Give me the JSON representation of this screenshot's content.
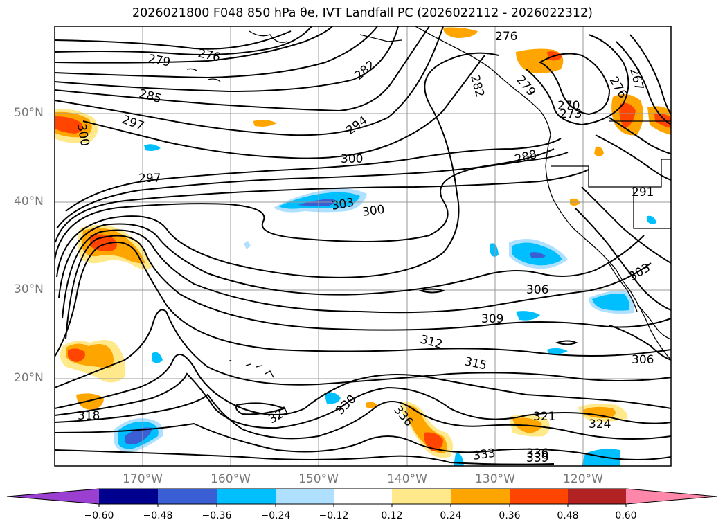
{
  "title": "2026021800 F048 850 hPa θe, IVT Landfall PC (2026022112 - 2026022312)",
  "map": {
    "lat_labels": [
      "50°N",
      "40°N",
      "30°N",
      "20°N"
    ],
    "lon_labels": [
      "170°W",
      "160°W",
      "150°W",
      "140°W",
      "130°W",
      "120°W"
    ],
    "contour_labels": [
      "276",
      "279",
      "285",
      "297",
      "300",
      "297",
      "270",
      "273",
      "276",
      "282",
      "294",
      "300",
      "303",
      "300",
      "306",
      "309",
      "312",
      "315",
      "318",
      "321",
      "330",
      "336",
      "333",
      "339",
      "336",
      "321",
      "324",
      "306",
      "303",
      "291",
      "288",
      "267",
      "276",
      "279",
      "282"
    ]
  },
  "colorbar": {
    "colors": [
      "#9a3fd0",
      "#00008f",
      "#3a5fd5",
      "#00bfff",
      "#b0e0ff",
      "#ffffff",
      "#ffe98a",
      "#ffa500",
      "#ff4500",
      "#b22222",
      "#ff88aa"
    ],
    "ticks": [
      "−0.60",
      "−0.48",
      "−0.36",
      "−0.24",
      "−0.12",
      "0.12",
      "0.24",
      "0.36",
      "0.48",
      "0.60"
    ]
  }
}
